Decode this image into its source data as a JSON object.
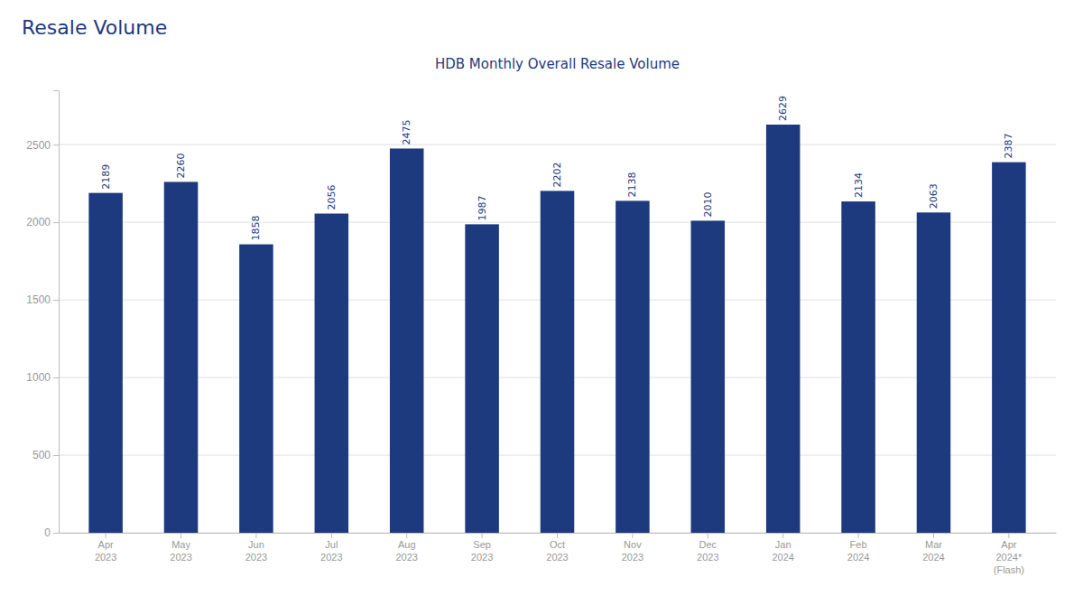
{
  "chart_data": {
    "type": "bar",
    "title": "Resale Volume",
    "subtitle": "HDB Monthly Overall Resale Volume",
    "categories": [
      "Apr\n2023",
      "May\n2023",
      "Jun\n2023",
      "Jul\n2023",
      "Aug\n2023",
      "Sep\n2023",
      "Oct\n2023",
      "Nov\n2023",
      "Dec\n2023",
      "Jan\n2024",
      "Feb\n2024",
      "Mar\n2024",
      "Apr\n2024*\n(Flash)"
    ],
    "values": [
      2189,
      2260,
      1858,
      2056,
      2475,
      1987,
      2202,
      2138,
      2010,
      2629,
      2134,
      2063,
      2387
    ],
    "color": "#1e3a7e",
    "ylim": [
      0,
      2850
    ],
    "yticks": [
      0,
      500,
      1000,
      1500,
      2000,
      2500
    ],
    "grid": true,
    "data_labels": true
  }
}
